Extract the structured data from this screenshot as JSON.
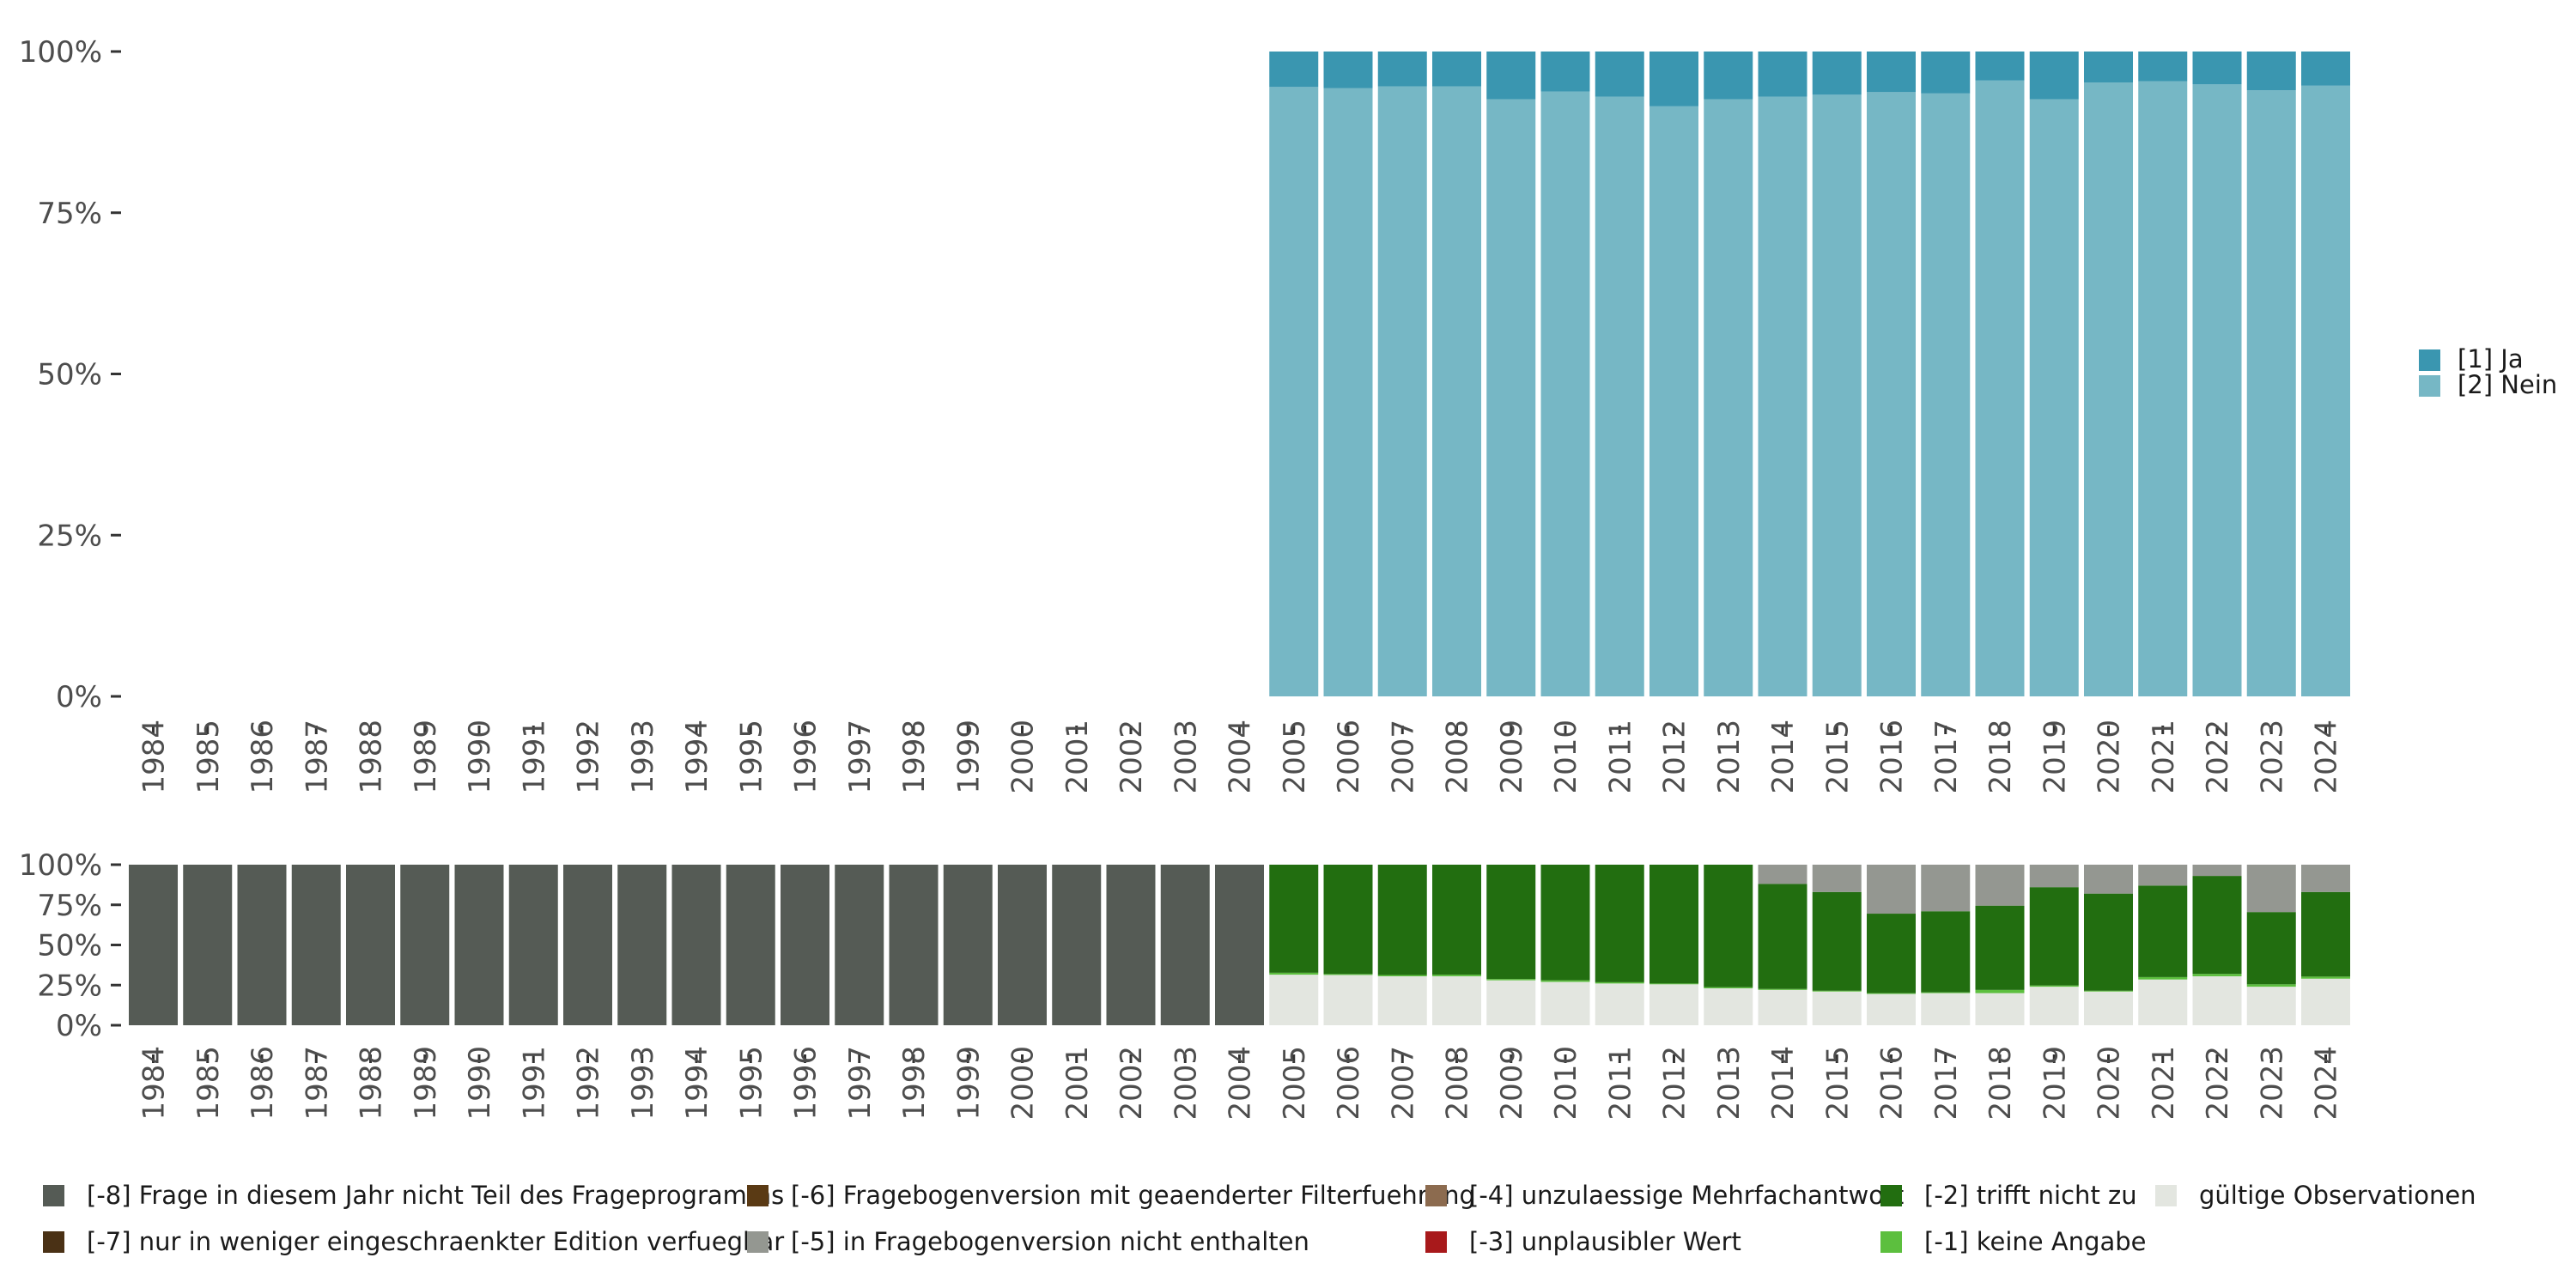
{
  "chart_data": [
    {
      "type": "bar",
      "stacked": true,
      "percent": true,
      "categories": [
        "1984",
        "1985",
        "1986",
        "1987",
        "1988",
        "1989",
        "1990",
        "1991",
        "1992",
        "1993",
        "1994",
        "1995",
        "1996",
        "1997",
        "1998",
        "1999",
        "2000",
        "2001",
        "2002",
        "2003",
        "2004",
        "2005",
        "2006",
        "2007",
        "2008",
        "2009",
        "2010",
        "2011",
        "2012",
        "2013",
        "2014",
        "2015",
        "2016",
        "2017",
        "2018",
        "2019",
        "2020",
        "2021",
        "2022",
        "2023",
        "2024"
      ],
      "y_tick_labels": [
        "0%",
        "25%",
        "50%",
        "75%",
        "100%"
      ],
      "ylim": [
        0,
        100
      ],
      "series": [
        {
          "name": "[2] Nein",
          "color": "#76b7c5",
          "values": [
            null,
            null,
            null,
            null,
            null,
            null,
            null,
            null,
            null,
            null,
            null,
            null,
            null,
            null,
            null,
            null,
            null,
            null,
            null,
            null,
            null,
            94.5,
            94.3,
            94.6,
            94.6,
            92.6,
            93.8,
            93.0,
            91.5,
            92.6,
            93.0,
            93.3,
            93.7,
            93.5,
            95.5,
            92.6,
            95.2,
            95.4,
            94.9,
            94.0,
            94.7
          ]
        },
        {
          "name": "[1] Ja",
          "color": "#3a96b0",
          "values": [
            null,
            null,
            null,
            null,
            null,
            null,
            null,
            null,
            null,
            null,
            null,
            null,
            null,
            null,
            null,
            null,
            null,
            null,
            null,
            null,
            null,
            5.5,
            5.7,
            5.4,
            5.4,
            7.4,
            6.2,
            7.0,
            8.5,
            7.4,
            7.0,
            6.7,
            6.3,
            6.5,
            4.5,
            7.4,
            4.8,
            4.6,
            5.1,
            6.0,
            5.3
          ]
        }
      ],
      "legend": {
        "position": "right"
      }
    },
    {
      "type": "bar",
      "stacked": true,
      "percent": true,
      "categories": [
        "1984",
        "1985",
        "1986",
        "1987",
        "1988",
        "1989",
        "1990",
        "1991",
        "1992",
        "1993",
        "1994",
        "1995",
        "1996",
        "1997",
        "1998",
        "1999",
        "2000",
        "2001",
        "2002",
        "2003",
        "2004",
        "2005",
        "2006",
        "2007",
        "2008",
        "2009",
        "2010",
        "2011",
        "2012",
        "2013",
        "2014",
        "2015",
        "2016",
        "2017",
        "2018",
        "2019",
        "2020",
        "2021",
        "2022",
        "2023",
        "2024"
      ],
      "y_tick_labels": [
        "0%",
        "25%",
        "50%",
        "75%",
        "100%"
      ],
      "ylim": [
        0,
        100
      ],
      "series": [
        {
          "name": "gültige Observationen",
          "color": "#e3e6e0",
          "values": [
            0,
            0,
            0,
            0,
            0,
            0,
            0,
            0,
            0,
            0,
            0,
            0,
            0,
            0,
            0,
            0,
            0,
            0,
            0,
            0,
            0,
            31.5,
            31.3,
            30.5,
            30.5,
            28,
            27,
            26,
            25.5,
            23,
            22,
            21,
            19.5,
            20,
            20,
            24,
            21,
            28.5,
            30.5,
            24,
            29
          ]
        },
        {
          "name": "[-1] keine Angabe",
          "color": "#5cbf3e",
          "values": [
            0,
            0,
            0,
            0,
            0,
            0,
            0,
            0,
            0,
            0,
            0,
            0,
            0,
            0,
            0,
            0,
            0,
            0,
            0,
            0,
            0,
            1.2,
            0.6,
            0.8,
            1,
            0.8,
            1,
            0.8,
            0.5,
            0.7,
            0.6,
            0.5,
            0.5,
            0.5,
            2,
            0.8,
            0.5,
            1.5,
            1.5,
            1.5,
            1.3
          ]
        },
        {
          "name": "[-2] trifft nicht zu",
          "color": "#226e10",
          "values": [
            0,
            0,
            0,
            0,
            0,
            0,
            0,
            0,
            0,
            0,
            0,
            0,
            0,
            0,
            0,
            0,
            0,
            0,
            0,
            0,
            0,
            67.3,
            68.1,
            68.7,
            68.5,
            71.2,
            72,
            73.2,
            74,
            76.3,
            65.4,
            61.5,
            49.5,
            50.5,
            52.5,
            61.2,
            60.5,
            57,
            61,
            45,
            52.7
          ]
        },
        {
          "name": "[-5] in Fragebogenversion nicht enthalten",
          "color": "#949791",
          "values": [
            0,
            0,
            0,
            0,
            0,
            0,
            0,
            0,
            0,
            0,
            0,
            0,
            0,
            0,
            0,
            0,
            0,
            0,
            0,
            0,
            0,
            0,
            0,
            0,
            0,
            0,
            0,
            0,
            0,
            0,
            12,
            17,
            30.5,
            29,
            25.5,
            14,
            18,
            13,
            7,
            29.5,
            17
          ]
        },
        {
          "name": "[-8] Frage in diesem Jahr nicht Teil des Frageprogramms",
          "color": "#555b55",
          "values": [
            100,
            100,
            100,
            100,
            100,
            100,
            100,
            100,
            100,
            100,
            100,
            100,
            100,
            100,
            100,
            100,
            100,
            100,
            100,
            100,
            100,
            0,
            0,
            0,
            0,
            0,
            0,
            0,
            0,
            0,
            0,
            0,
            0,
            0,
            0,
            0,
            0,
            0,
            0,
            0,
            0
          ]
        }
      ],
      "legend": {
        "position": "bottom",
        "items": [
          {
            "name": "[-8] Frage in diesem Jahr nicht Teil des Frageprogramms",
            "color": "#555b55"
          },
          {
            "name": "[-7] nur in weniger eingeschraenkter Edition verfuegbar",
            "color": "#4a3115"
          },
          {
            "name": "[-6] Fragebogenversion mit geaenderter Filterfuehrung",
            "color": "#5a3a14"
          },
          {
            "name": "[-5] in Fragebogenversion nicht enthalten",
            "color": "#949791"
          },
          {
            "name": "[-4] unzulaessige Mehrfachantwort",
            "color": "#8c6b4f"
          },
          {
            "name": "[-3] unplausibler Wert",
            "color": "#a8191b"
          },
          {
            "name": "[-2] trifft nicht zu",
            "color": "#226e10"
          },
          {
            "name": "[-1] keine Angabe",
            "color": "#5cbf3e"
          },
          {
            "name": "gültige Observationen",
            "color": "#e3e6e0"
          }
        ]
      }
    }
  ]
}
